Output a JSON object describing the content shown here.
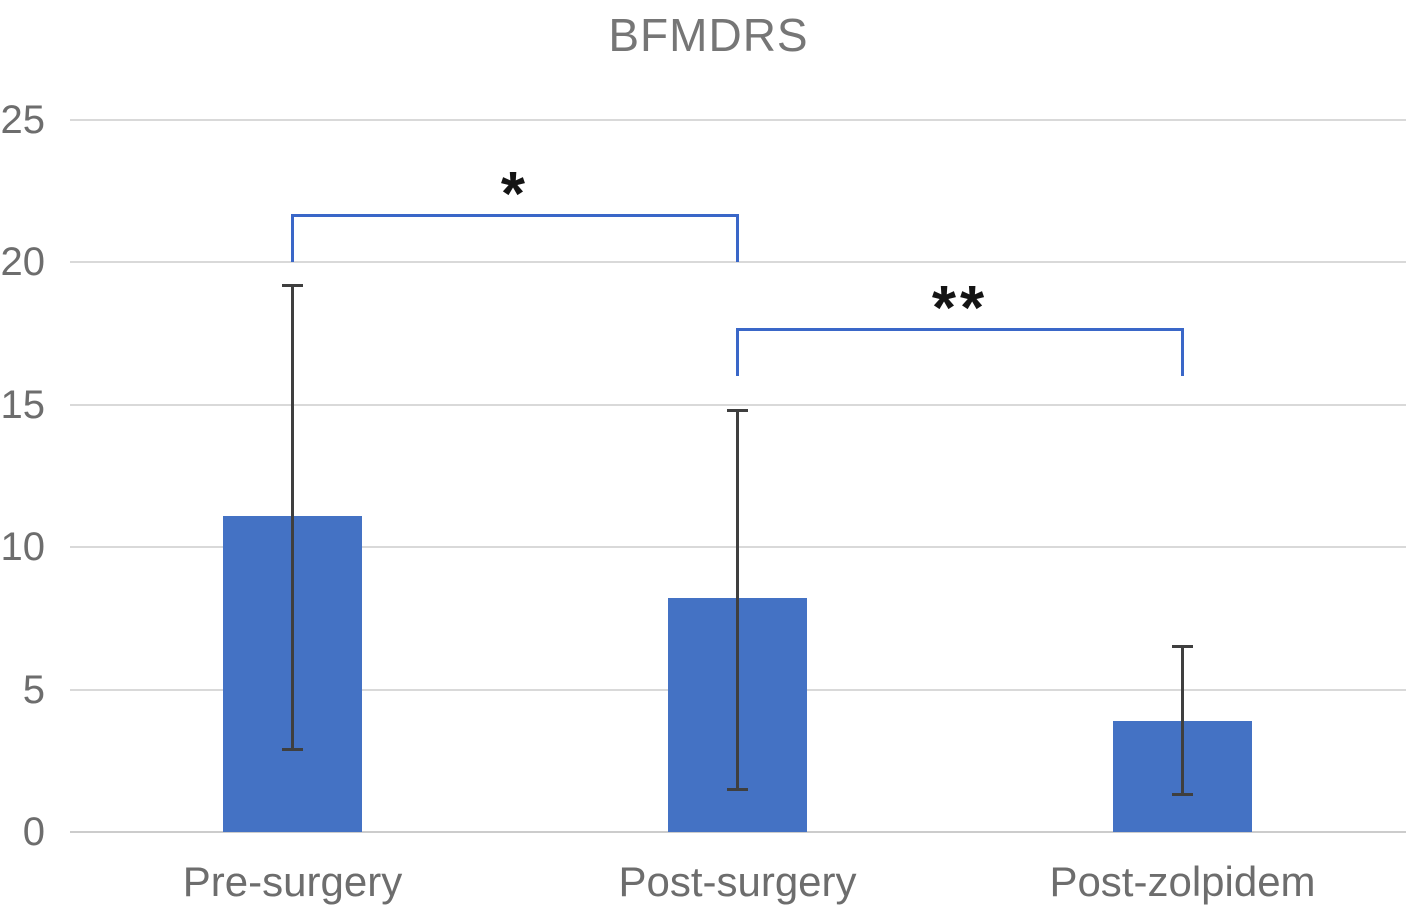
{
  "title": {
    "text": "BFMDRS"
  },
  "colors": {
    "bar_fill": "#4472C4",
    "bracket_blue": "#3A67C8",
    "error_bar": "#3F3F3F",
    "gridline": "#D9D9D9",
    "title_text": "#767676",
    "axis_text": "#6D6D6D",
    "significance_text": "#141414",
    "background": "#FFFFFF"
  },
  "chart_data": {
    "type": "bar",
    "title": "BFMDRS",
    "xlabel": "",
    "ylabel": "",
    "categories": [
      "Pre-surgery",
      "Post-surgery",
      "Post-zolpidem"
    ],
    "values": [
      11.1,
      8.2,
      3.9
    ],
    "error_bars": [
      {
        "upper": 19.2,
        "lower": 2.9
      },
      {
        "upper": 14.8,
        "lower": 1.5
      },
      {
        "upper": 6.5,
        "lower": 1.3
      }
    ],
    "y_ticks": [
      0,
      5,
      10,
      15,
      20,
      25
    ],
    "y_tick_labels": [
      "0",
      "5",
      "10",
      "15",
      "20",
      "25"
    ],
    "ylim": [
      0,
      25
    ],
    "grid": true,
    "legend": "none",
    "annotations": [
      {
        "label": "*",
        "from_index": 0,
        "to_index": 1,
        "bracket_y": 21.7,
        "leg_bottom_y": 20.0
      },
      {
        "label": "**",
        "from_index": 1,
        "to_index": 2,
        "bracket_y": 17.7,
        "leg_bottom_y": 16.0
      }
    ]
  }
}
